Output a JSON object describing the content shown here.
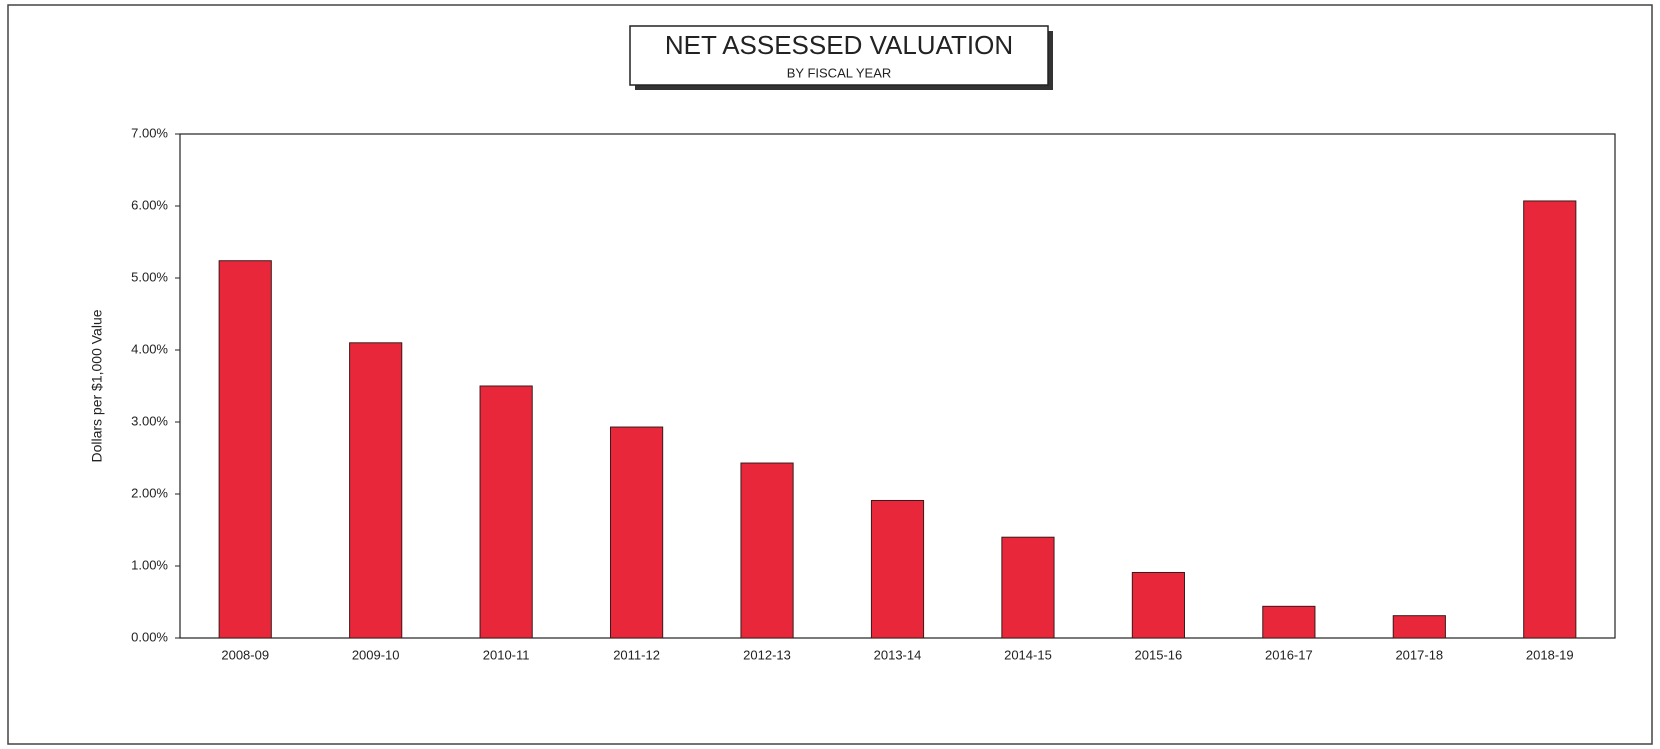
{
  "chart_data": {
    "type": "bar",
    "title": "NET ASSESSED VALUATION",
    "subtitle": "BY FISCAL YEAR",
    "y_label": "Dollars per $1,000 Value",
    "categories": [
      "2008-09",
      "2009-10",
      "2010-11",
      "2011-12",
      "2012-13",
      "2013-14",
      "2014-15",
      "2015-16",
      "2016-17",
      "2017-18",
      "2018-19"
    ],
    "values": [
      5.24,
      4.1,
      3.5,
      2.93,
      2.43,
      1.91,
      1.4,
      0.91,
      0.44,
      0.31,
      6.07
    ],
    "color": "#e8283a",
    "ylim": [
      0,
      7
    ],
    "yticks": [
      {
        "value": 0,
        "label": "0.00%"
      },
      {
        "value": 1,
        "label": "1.00%"
      },
      {
        "value": 2,
        "label": "2.00%"
      },
      {
        "value": 3,
        "label": "3.00%"
      },
      {
        "value": 4,
        "label": "4.00%"
      },
      {
        "value": 5,
        "label": "5.00%"
      },
      {
        "value": 6,
        "label": "6.00%"
      },
      {
        "value": 7,
        "label": "7.00%"
      }
    ],
    "grid": false
  }
}
